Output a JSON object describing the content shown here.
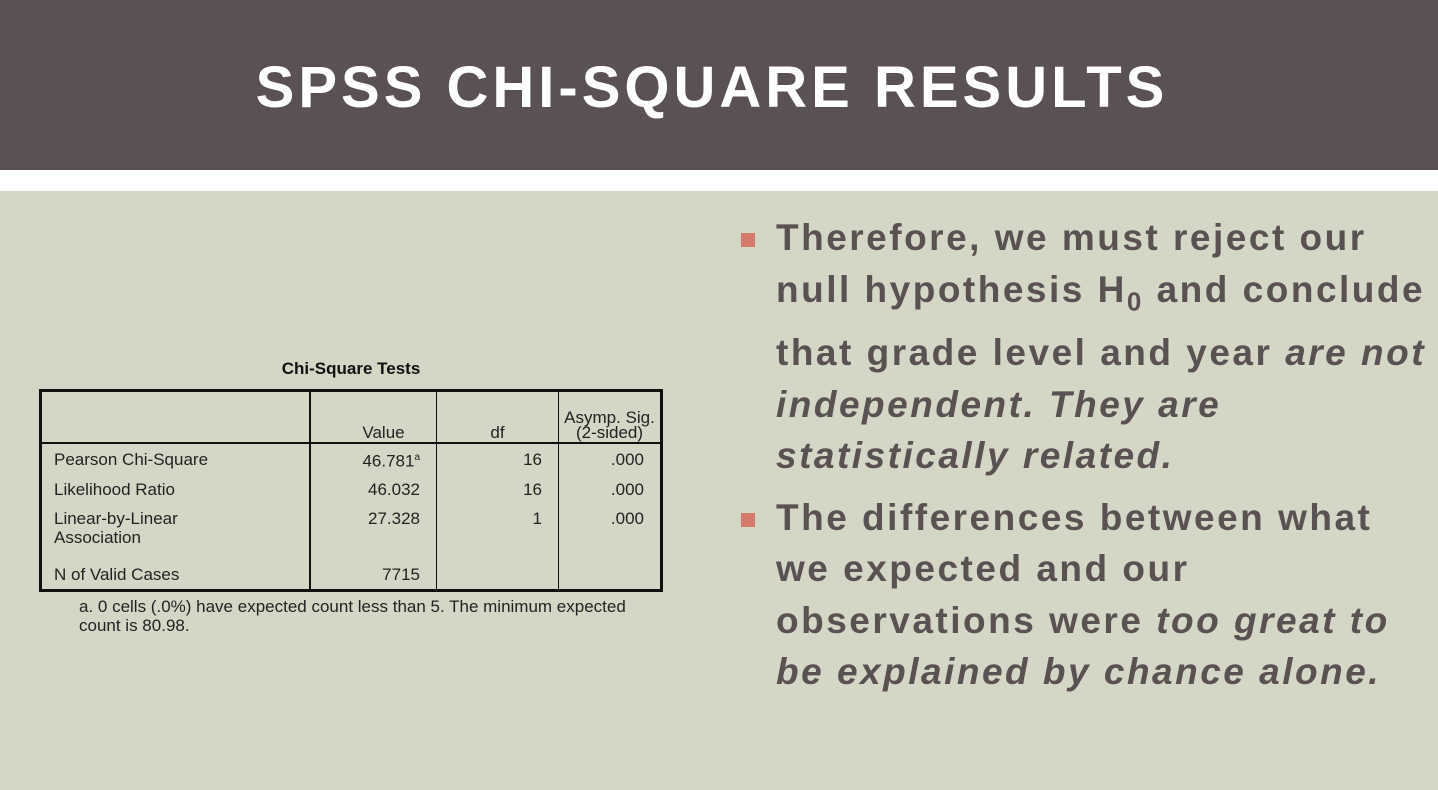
{
  "slide": {
    "title": "SPSS CHI-SQUARE RESULTS"
  },
  "table": {
    "caption": "Chi-Square Tests",
    "headers": {
      "value": "Value",
      "df": "df",
      "sig_line1": "Asymp. Sig.",
      "sig_line2": "(2-sided)"
    },
    "rows": [
      {
        "label": "Pearson Chi-Square",
        "value": "46.781",
        "value_note": "a",
        "df": "16",
        "sig": ".000"
      },
      {
        "label": "Likelihood Ratio",
        "value": "46.032",
        "df": "16",
        "sig": ".000"
      },
      {
        "label_line1": "Linear-by-Linear",
        "label_line2": "Association",
        "value": "27.328",
        "df": "1",
        "sig": ".000"
      },
      {
        "label": "N of Valid Cases",
        "value": "7715"
      }
    ],
    "footnote": "a. 0 cells (.0%) have expected count less than 5. The minimum expected count is 80.98."
  },
  "bullets": [
    {
      "part1": "Therefore, we must reject our null hypothesis H",
      "subscript": "0",
      "part2": " and conclude that grade level and year ",
      "emphasis": "are not independent. They are statistically related."
    },
    {
      "part1": "The differences between what we expected and our observations were ",
      "emphasis": "too great to be explained by chance alone."
    }
  ],
  "colors": {
    "header_bg": "#5a5152",
    "slide_bg": "#d4d7c5",
    "bullet_marker": "#d37a6a",
    "text": "#5a5152"
  }
}
